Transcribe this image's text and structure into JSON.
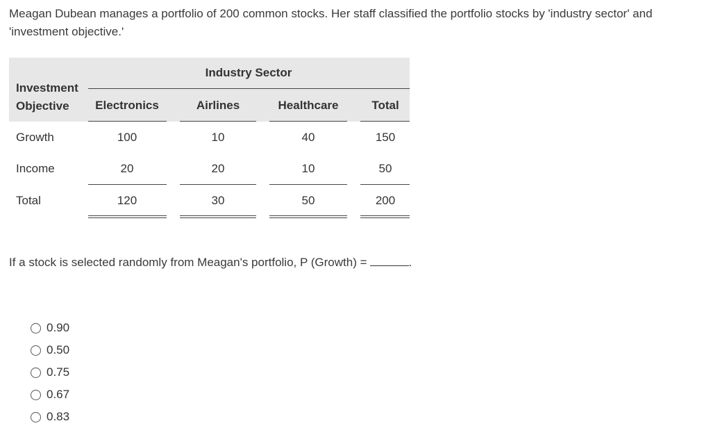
{
  "intro": "Meagan Dubean manages a portfolio of 200 common stocks. Her staff classified the portfolio stocks by 'industry sector' and 'investment objective.'",
  "table": {
    "group_header": "Industry Sector",
    "row_header_line1": "Investment",
    "row_header_line2": "Objective",
    "columns": [
      "Electronics",
      "Airlines",
      "Healthcare",
      "Total"
    ],
    "rows": [
      {
        "label": "Growth",
        "values": [
          "100",
          "10",
          "40",
          "150"
        ]
      },
      {
        "label": "Income",
        "values": [
          "20",
          "20",
          "10",
          "50"
        ]
      },
      {
        "label": "Total",
        "values": [
          "120",
          "30",
          "50",
          "200"
        ]
      }
    ]
  },
  "question": {
    "text": "If a stock is selected randomly from Meagan's portfolio, P (Growth) =",
    "end": "."
  },
  "options": [
    "0.90",
    "0.50",
    "0.75",
    "0.67",
    "0.83"
  ]
}
